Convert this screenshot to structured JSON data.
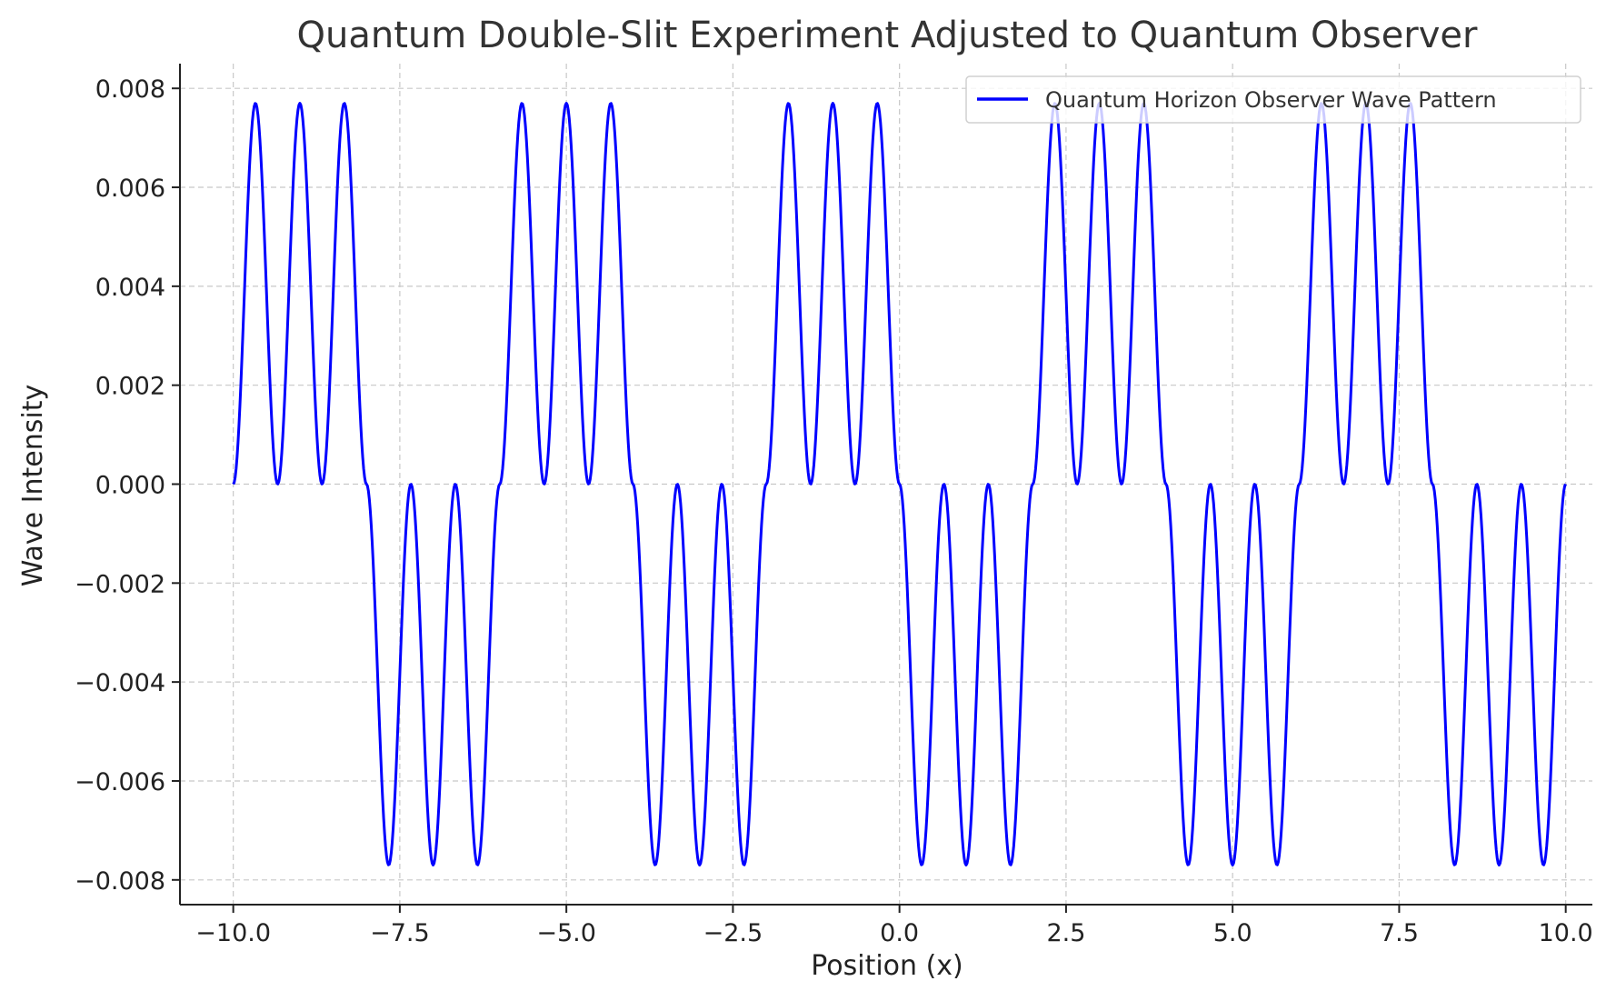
{
  "chart_data": {
    "type": "line",
    "title": "Quantum Double-Slit Experiment Adjusted to Quantum Observer",
    "xlabel": "Position (x)",
    "ylabel": "Wave Intensity",
    "xlim": [
      -10.8,
      10.4
    ],
    "ylim": [
      -0.0085,
      0.0085
    ],
    "xticks": [
      -10,
      -7.5,
      -5,
      -2.5,
      0,
      2.5,
      5,
      7.5,
      10
    ],
    "xtick_labels": [
      "−10.0",
      "−7.5",
      "−5.0",
      "−2.5",
      "0.0",
      "2.5",
      "5.0",
      "7.5",
      "10.0"
    ],
    "yticks": [
      0.008,
      0.006,
      0.004,
      0.002,
      0,
      -0.002,
      -0.004,
      -0.006,
      -0.008
    ],
    "ytick_labels": [
      "0.008",
      "0.006",
      "0.004",
      "0.002",
      "0.000",
      "−0.002",
      "−0.004",
      "−0.006",
      "−0.008"
    ],
    "grid": true,
    "legend_position": "top-right",
    "series": [
      {
        "name": "Quantum Horizon Observer Wave Pattern",
        "color": "#0000ff",
        "function": "0.0077 * sin(pi*x) * sin(sin(pi*x) + ... ) envelope",
        "x": [
          -10.0,
          -9.9,
          -9.8,
          -9.7,
          -9.6,
          -9.5,
          -9.4,
          -9.3,
          -9.2,
          -9.1,
          -9.0,
          -8.9,
          -8.8,
          -8.7,
          -8.6,
          -8.5,
          -8.4,
          -8.3,
          -8.2,
          -8.1,
          -8.0,
          -7.9,
          -7.8,
          -7.7,
          -7.6,
          -7.5,
          -7.4,
          -7.3,
          -7.2,
          -7.1,
          -7.0,
          -6.9,
          -6.8,
          -6.7,
          -6.6,
          -6.5,
          -6.4,
          -6.3,
          -6.2,
          -6.1,
          -6.0,
          -5.9,
          -5.8,
          -5.7,
          -5.6,
          -5.5,
          -5.4,
          -5.3,
          -5.2,
          -5.1,
          -5.0,
          -4.9,
          -4.8,
          -4.7,
          -4.6,
          -4.5,
          -4.4,
          -4.3,
          -4.2,
          -4.1,
          -4.0,
          -3.9,
          -3.8,
          -3.7,
          -3.6,
          -3.5,
          -3.4,
          -3.3,
          -3.2,
          -3.1,
          -3.0,
          -2.9,
          -2.8,
          -2.7,
          -2.6,
          -2.5,
          -2.4,
          -2.3,
          -2.2,
          -2.1,
          -2.0,
          -1.9,
          -1.8,
          -1.7,
          -1.6,
          -1.5,
          -1.4,
          -1.3,
          -1.2,
          -1.1,
          -1.0,
          -0.9,
          -0.8,
          -0.7,
          -0.6,
          -0.5,
          -0.4,
          -0.3,
          -0.2,
          -0.1,
          0.0,
          0.1,
          0.2,
          0.3,
          0.4,
          0.5,
          0.6,
          0.7,
          0.8,
          0.9,
          1.0,
          1.1,
          1.2,
          1.3,
          1.4,
          1.5,
          1.6,
          1.7,
          1.8,
          1.9,
          2.0,
          2.1,
          2.2,
          2.3,
          2.4,
          2.5,
          2.6,
          2.7,
          2.8,
          2.9,
          3.0,
          3.1,
          3.2,
          3.3,
          3.4,
          3.5,
          3.6,
          3.7,
          3.8,
          3.9,
          4.0,
          4.1,
          4.2,
          4.3,
          4.4,
          4.5,
          4.6,
          4.7,
          4.8,
          4.9,
          5.0,
          5.1,
          5.2,
          5.3,
          5.4,
          5.5,
          5.6,
          5.7,
          5.8,
          5.9,
          6.0,
          6.1,
          6.2,
          6.3,
          6.4,
          6.5,
          6.6,
          6.7,
          6.8,
          6.9,
          7.0,
          7.1,
          7.2,
          7.3,
          7.4,
          7.5,
          7.6,
          7.7,
          7.8,
          7.9,
          8.0,
          8.1,
          8.2,
          8.3,
          8.4,
          8.5,
          8.6,
          8.7,
          8.8,
          8.9,
          9.0,
          9.1,
          9.2,
          9.3,
          9.4,
          9.5,
          9.6,
          9.7,
          9.8,
          9.9,
          10.0
        ]
      }
    ]
  },
  "legend": {
    "label": "Quantum Horizon Observer Wave Pattern"
  }
}
